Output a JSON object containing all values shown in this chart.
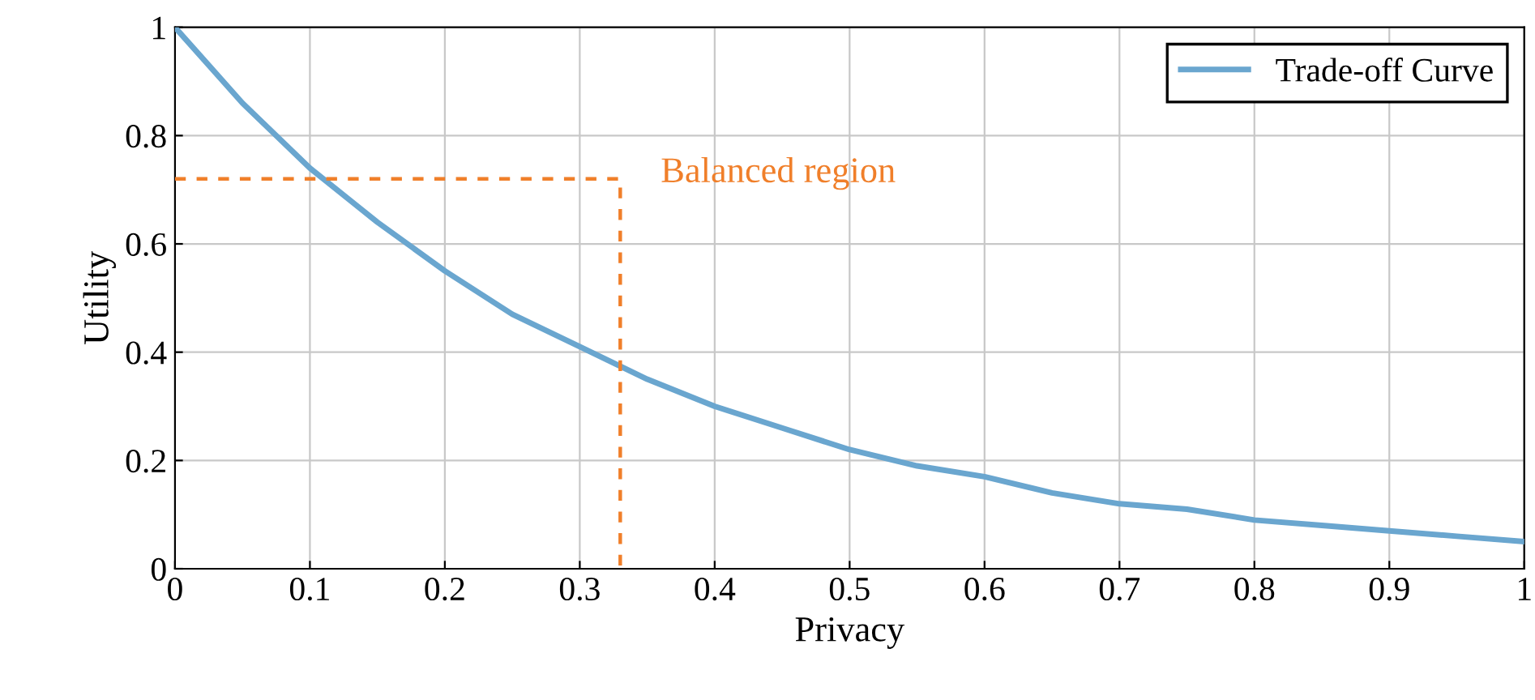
{
  "chart_data": {
    "type": "line",
    "xlabel": "Privacy",
    "ylabel": "Utility",
    "xlim": [
      0,
      1
    ],
    "ylim": [
      0,
      1
    ],
    "xticks": [
      0,
      0.1,
      0.2,
      0.3,
      0.4,
      0.5,
      0.6,
      0.7,
      0.8,
      0.9,
      1
    ],
    "yticks": [
      0,
      0.2,
      0.4,
      0.6,
      0.8,
      1
    ],
    "grid": true,
    "legend": "top right",
    "series": [
      {
        "name": "Trade-off Curve",
        "color": "#6aa6cf",
        "line_style": "solid",
        "x": [
          0,
          0.05,
          0.1,
          0.15,
          0.2,
          0.25,
          0.3,
          0.35,
          0.4,
          0.45,
          0.5,
          0.55,
          0.6,
          0.65,
          0.7,
          0.75,
          0.8,
          0.85,
          0.9,
          0.95,
          1
        ],
        "values": [
          1,
          0.86,
          0.74,
          0.64,
          0.55,
          0.47,
          0.41,
          0.35,
          0.3,
          0.26,
          0.22,
          0.19,
          0.17,
          0.14,
          0.12,
          0.11,
          0.09,
          0.08,
          0.07,
          0.06,
          0.05
        ]
      },
      {
        "color": "#f07f2a",
        "line_style": "dashed",
        "x": [
          0,
          0.33,
          0.33
        ],
        "values": [
          0.72,
          0.72,
          0
        ]
      }
    ],
    "annotations": [
      "Balanced region"
    ]
  }
}
